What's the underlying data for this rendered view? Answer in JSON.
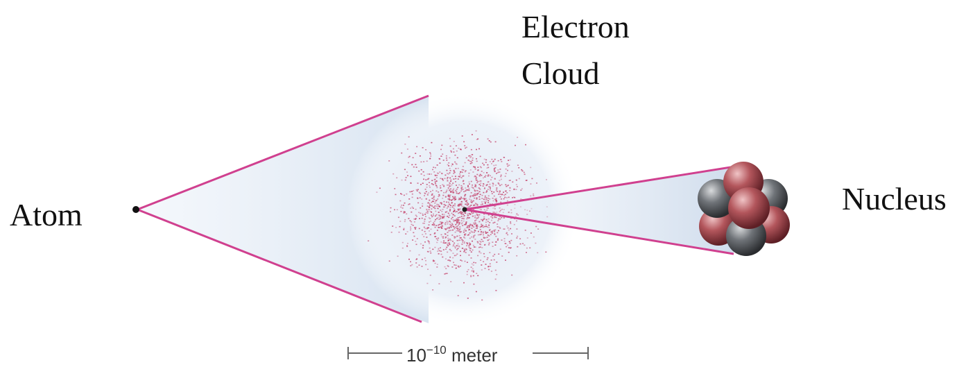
{
  "labels": {
    "atom": "Atom",
    "electron_cloud_line1": "Electron",
    "electron_cloud_line2": "Cloud",
    "nucleus": "Nucleus"
  },
  "scale_bar": {
    "base": "10",
    "exponent": "−10",
    "unit": "meter"
  },
  "colors": {
    "cone_line": "#d0408f",
    "cone_fill": "#dde8f4",
    "cloud_dot": "#c23a64",
    "proton": "#a8444c",
    "neutron": "#5d6166",
    "scale_bar": "#666666"
  }
}
